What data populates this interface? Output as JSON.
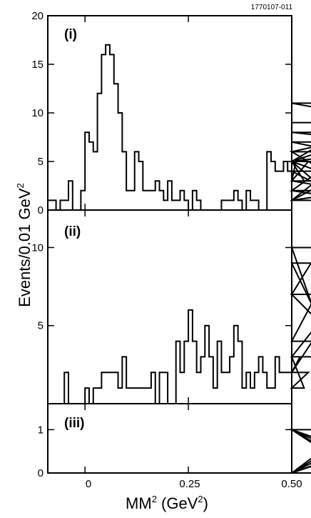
{
  "figure_id": "1770107-011",
  "ylabel": "Events/0.01 GeV",
  "ylabel_sup": "2",
  "xlabel_main": "MM",
  "xlabel_sup1": "2",
  "xlabel_mid": " (GeV",
  "xlabel_sup2": "2",
  "xlabel_end": ")",
  "chart_data": [
    {
      "type": "bar",
      "panel": "(i)",
      "bin_width": 0.01,
      "x_start": -0.09,
      "xlim": [
        -0.09,
        0.5
      ],
      "ylim": [
        0,
        20
      ],
      "yticks": [
        0,
        5,
        10,
        15,
        20
      ],
      "xticks": [
        0,
        0.25,
        0.5
      ],
      "values": [
        1,
        1,
        0,
        1,
        1,
        3,
        0,
        0,
        2,
        8,
        7,
        6,
        12,
        16,
        17,
        16,
        13,
        10,
        6,
        2,
        2,
        6,
        5,
        2,
        2,
        2,
        3,
        2,
        1,
        3,
        1,
        1,
        2,
        1,
        0,
        2,
        1,
        0,
        0,
        0,
        0,
        0,
        1,
        1,
        1,
        2,
        1,
        0,
        2,
        1,
        1,
        0,
        0,
        6,
        5,
        4,
        4,
        5,
        4,
        3,
        5,
        5,
        3,
        5,
        5,
        5,
        6,
        4,
        2,
        5,
        1,
        5,
        3,
        2,
        1,
        2,
        1,
        5,
        6,
        6,
        8,
        7,
        5,
        11,
        11,
        9
      ],
      "x_note": "bins start at x_start, width bin_width"
    },
    {
      "type": "bar",
      "panel": "(ii)",
      "bin_width": 0.01,
      "x_start": -0.09,
      "xlim": [
        -0.09,
        0.5
      ],
      "ylim": [
        0,
        12.4
      ],
      "yticks": [
        5,
        10
      ],
      "xticks": [
        0,
        0.25,
        0.5
      ],
      "values": [
        0,
        0,
        0,
        0,
        2,
        0,
        0,
        0,
        0,
        1,
        0,
        1,
        1,
        2,
        2,
        2,
        2,
        1,
        3,
        1,
        1,
        1,
        1,
        1,
        1,
        2,
        0,
        2,
        2,
        0,
        0,
        4,
        2,
        4,
        6,
        4,
        2,
        3,
        5,
        3,
        1,
        4,
        2,
        2,
        3,
        5,
        4,
        1,
        2,
        1,
        2,
        3,
        2,
        1,
        1,
        3,
        2,
        2,
        2,
        2,
        2,
        3,
        1,
        2,
        4,
        7,
        10,
        4,
        4,
        9,
        3,
        7,
        7,
        7,
        3
      ],
      "x_note": "values begin at x_start; trailing bins at higher x"
    },
    {
      "type": "bar",
      "panel": "(iii)",
      "bin_width": 0.01,
      "x_start": -0.09,
      "xlim": [
        -0.09,
        0.5
      ],
      "ylim": [
        0,
        1.6
      ],
      "yticks": [
        0,
        1
      ],
      "xticks": [
        0,
        0.25,
        0.5
      ],
      "values": [
        0,
        0,
        0,
        0,
        0,
        0,
        0,
        0,
        0,
        0,
        0,
        0,
        0,
        0,
        0,
        0,
        0,
        0,
        0,
        0,
        0,
        0,
        0,
        0,
        0,
        0,
        0,
        0,
        0,
        0,
        0,
        0,
        0,
        0,
        0,
        0,
        0,
        0,
        0,
        0,
        0,
        0,
        0,
        0,
        0,
        0,
        0,
        0,
        0,
        0,
        0,
        0,
        0,
        0,
        0,
        0,
        0,
        0,
        0,
        0,
        0,
        0,
        0,
        0,
        0,
        0,
        0,
        0,
        0,
        0,
        0,
        0,
        0,
        1,
        1,
        0,
        1,
        0,
        0,
        0,
        1,
        1,
        0,
        0,
        0,
        0,
        0,
        0,
        1,
        0,
        1,
        1,
        1
      ]
    }
  ],
  "xtick_labels": [
    "0",
    "0.25",
    "0.50"
  ],
  "panel_ytick_labels": [
    [
      "0",
      "5",
      "10",
      "15",
      "20"
    ],
    [
      "5",
      "10"
    ],
    [
      "0",
      "1"
    ]
  ]
}
